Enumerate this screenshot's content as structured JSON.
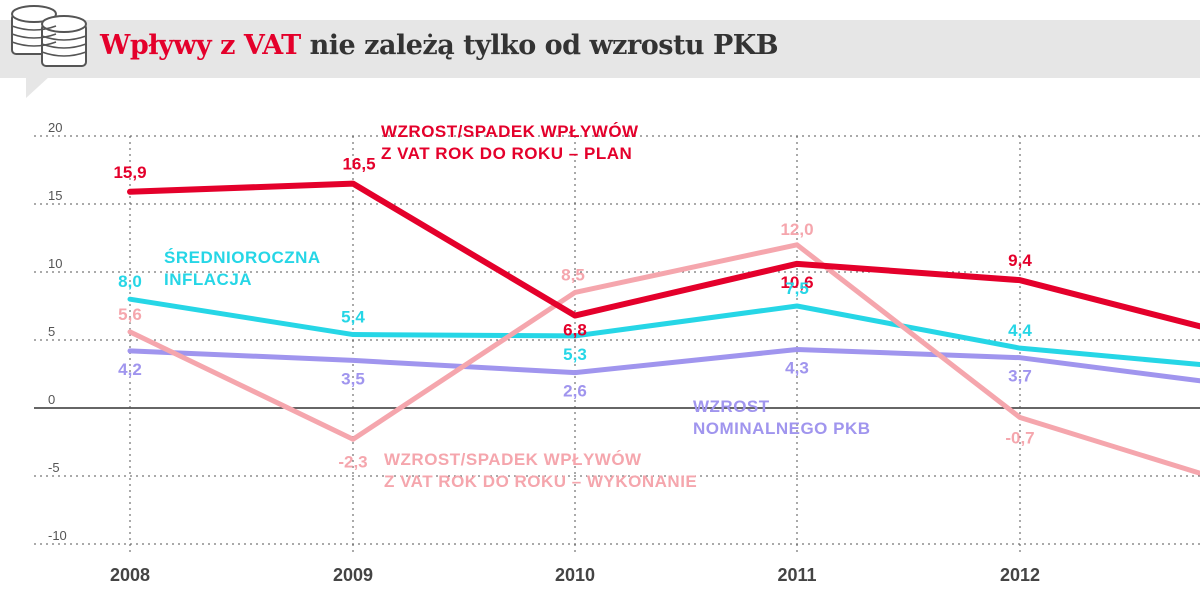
{
  "header": {
    "title_highlight": "Wpływy z VAT",
    "title_rest": " nie zależą tylko od wzrostu PKB",
    "icon": "coins-icon"
  },
  "chart_data": {
    "type": "line",
    "x": [
      "2008",
      "2009",
      "2010",
      "2011",
      "2012"
    ],
    "ylim": [
      -10,
      20
    ],
    "yticks": [
      "20",
      "15",
      "10",
      "5",
      "0",
      "-5",
      "-10"
    ],
    "grid": true,
    "series": [
      {
        "name": "WZROST/SPADEK WPŁYWÓW Z VAT ROK DO ROKU – PLAN",
        "name_lines": [
          "WZROST/SPADEK WPŁYWÓW",
          "Z VAT ROK DO ROKU – PLAN"
        ],
        "color": "#e4002b",
        "values": [
          15.9,
          16.5,
          6.8,
          10.6,
          9.4
        ],
        "labels": [
          "15,9",
          "16,5",
          "6,8",
          "10,6",
          "9,4"
        ],
        "tail_value": 6.0
      },
      {
        "name": "ŚREDNIOROCZNA INFLACJA",
        "name_lines": [
          "ŚREDNIOROCZNA",
          "INFLACJA"
        ],
        "color": "#26d6e6",
        "values": [
          8.0,
          5.4,
          5.3,
          7.5,
          4.4
        ],
        "labels": [
          "8,0",
          "5,4",
          "5,3",
          "7,5",
          "4,4"
        ],
        "tail_value": 3.2
      },
      {
        "name": "WZROST/SPADEK WPŁYWÓW Z VAT ROK DO ROKU – WYKONANIE",
        "name_lines": [
          "WZROST/SPADEK WPŁYWÓW",
          "Z VAT ROK DO ROKU – WYKONANIE"
        ],
        "color": "#f5a6ad",
        "values": [
          5.6,
          -2.3,
          8.5,
          12.0,
          -0.7
        ],
        "labels": [
          "5,6",
          "-2,3",
          "8,5",
          "12,0",
          "-0,7"
        ],
        "tail_value": -4.8
      },
      {
        "name": "WZROST NOMINALNEGO PKB",
        "name_lines": [
          "WZROST",
          "NOMINALNEGO PKB"
        ],
        "color": "#a095ee",
        "values": [
          4.2,
          3.5,
          2.6,
          4.3,
          3.7
        ],
        "labels": [
          "4,2",
          "3,5",
          "2,6",
          "4,3",
          "3,7"
        ],
        "tail_value": 2.0
      }
    ]
  }
}
